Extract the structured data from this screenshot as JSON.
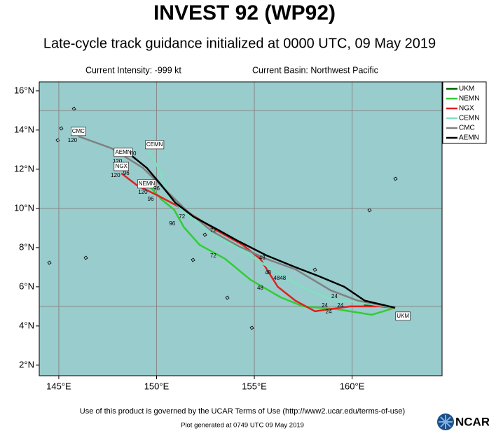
{
  "chart_data": {
    "type": "line",
    "title": "INVEST 92 (WP92)",
    "subtitle": "Late-cycle track guidance initialized at 0000 UTC, 09 May 2019",
    "intensity": "Current Intensity: -999 kt",
    "basin": "Current Basin: Northwest Pacific",
    "footer": "Use of this product is governed by the UCAR Terms of Use (http://www2.ucar.edu/terms-of-use)",
    "generated": "Plot generated at 0749 UTC  09 May 2019",
    "logo": "NCAR",
    "xlim": [
      144,
      164.6
    ],
    "ylim": [
      1.46,
      16.46
    ],
    "xticks": [
      {
        "value": 145,
        "label": "145°E"
      },
      {
        "value": 150,
        "label": "150°E"
      },
      {
        "value": 155,
        "label": "155°E"
      },
      {
        "value": 160,
        "label": "160°E"
      }
    ],
    "yticks": [
      {
        "value": 2,
        "label": "2°N"
      },
      {
        "value": 4,
        "label": "4°N"
      },
      {
        "value": 6,
        "label": "6°N"
      },
      {
        "value": 8,
        "label": "8°N"
      },
      {
        "value": 10,
        "label": "10°N"
      },
      {
        "value": 12,
        "label": "12°N"
      },
      {
        "value": 14,
        "label": "14°N"
      },
      {
        "value": 16,
        "label": "16°N"
      }
    ],
    "grid_lon": [
      145,
      150,
      155,
      160
    ],
    "grid_lat": [
      5,
      10,
      15
    ],
    "legend": "outside-right",
    "background": "#99cccc",
    "series": [
      {
        "name": "UKM",
        "color": "#006400",
        "x": [
          162.2,
          161.5,
          160.6
        ],
        "y": [
          4.93,
          5.0,
          5.05
        ]
      },
      {
        "name": "NEMN",
        "color": "#33cc33",
        "x": [
          162.2,
          161.0,
          159.2,
          157.5,
          156.35,
          154.8,
          153.5,
          152.2,
          151.4,
          150.9,
          150.25,
          149.5
        ],
        "y": [
          4.93,
          4.57,
          4.86,
          5.0,
          5.46,
          6.36,
          7.43,
          8.14,
          9.04,
          9.93,
          10.46,
          11.29
        ]
      },
      {
        "name": "NGX",
        "color": "#e02020",
        "x": [
          162.2,
          161.4,
          159.9,
          158.1,
          157.1,
          156.2,
          155.3,
          154.4,
          153.1,
          151.3,
          150.1,
          149.0,
          148.2
        ],
        "y": [
          4.93,
          5.0,
          5.0,
          4.75,
          5.29,
          6.0,
          7.43,
          8.14,
          8.86,
          10.0,
          10.64,
          11.18,
          11.79
        ]
      },
      {
        "name": "CEMN",
        "color": "#80e0c0",
        "x": [
          162.2,
          160.3,
          158.9,
          157.4,
          156.2,
          154.2,
          152.8,
          151.5,
          150.6,
          150.25,
          149.9,
          149.5
        ],
        "y": [
          4.93,
          5.21,
          5.36,
          6.0,
          6.71,
          7.96,
          8.68,
          9.75,
          10.64,
          11.71,
          12.43,
          13.07
        ]
      },
      {
        "name": "CMC",
        "color": "#808080",
        "x": [
          162.2,
          160.3,
          158.9,
          158.0,
          157.1,
          155.6,
          154.2,
          152.8,
          151.5,
          150.4,
          149.3,
          147.7,
          146.0
        ],
        "y": [
          4.93,
          5.29,
          5.82,
          6.36,
          6.89,
          7.43,
          8.07,
          8.86,
          9.93,
          11.0,
          12.07,
          13.07,
          13.68
        ]
      },
      {
        "name": "AEMN",
        "color": "#000000",
        "x": [
          162.2,
          160.65,
          159.6,
          158.3,
          157.1,
          155.6,
          154.2,
          153.1,
          151.9,
          150.96,
          150.25,
          149.5,
          148.6
        ],
        "y": [
          4.93,
          5.29,
          6.0,
          6.54,
          7.0,
          7.61,
          8.32,
          8.93,
          9.57,
          10.29,
          11.18,
          12.07,
          12.79
        ]
      }
    ],
    "annotations": [
      {
        "text": "CMC",
        "lon": 146.0,
        "lat": 13.93,
        "boxed": true
      },
      {
        "text": "120",
        "lon": 145.7,
        "lat": 13.46
      },
      {
        "text": "CEMN",
        "lon": 149.9,
        "lat": 13.25,
        "boxed": true
      },
      {
        "text": "AEMN",
        "lon": 148.3,
        "lat": 12.86,
        "boxed": true
      },
      {
        "text": "80",
        "lon": 148.8,
        "lat": 12.79
      },
      {
        "text": "120",
        "lon": 148.0,
        "lat": 12.4
      },
      {
        "text": "NGX",
        "lon": 148.2,
        "lat": 12.14,
        "boxed": true
      },
      {
        "text": "96",
        "lon": 148.45,
        "lat": 11.79
      },
      {
        "text": "120",
        "lon": 147.9,
        "lat": 11.68
      },
      {
        "text": "NEMN",
        "lon": 149.5,
        "lat": 11.25,
        "boxed": true
      },
      {
        "text": "96",
        "lon": 150.0,
        "lat": 11.0
      },
      {
        "text": "120",
        "lon": 149.3,
        "lat": 10.82
      },
      {
        "text": "96",
        "lon": 149.7,
        "lat": 10.46
      },
      {
        "text": "96",
        "lon": 150.8,
        "lat": 9.21
      },
      {
        "text": "72",
        "lon": 151.3,
        "lat": 9.57
      },
      {
        "text": "72",
        "lon": 152.9,
        "lat": 8.86
      },
      {
        "text": "72",
        "lon": 152.9,
        "lat": 7.57
      },
      {
        "text": "48",
        "lon": 155.4,
        "lat": 7.46
      },
      {
        "text": "48",
        "lon": 155.7,
        "lat": 6.71
      },
      {
        "text": "4848",
        "lon": 156.3,
        "lat": 6.43
      },
      {
        "text": "48",
        "lon": 155.3,
        "lat": 5.93
      },
      {
        "text": "24",
        "lon": 159.1,
        "lat": 5.5
      },
      {
        "text": "24",
        "lon": 158.6,
        "lat": 5.04
      },
      {
        "text": "24",
        "lon": 159.4,
        "lat": 5.04
      },
      {
        "text": "24",
        "lon": 158.8,
        "lat": 4.71
      },
      {
        "text": "UKM",
        "lon": 162.6,
        "lat": 4.5,
        "boxed": true
      }
    ]
  }
}
